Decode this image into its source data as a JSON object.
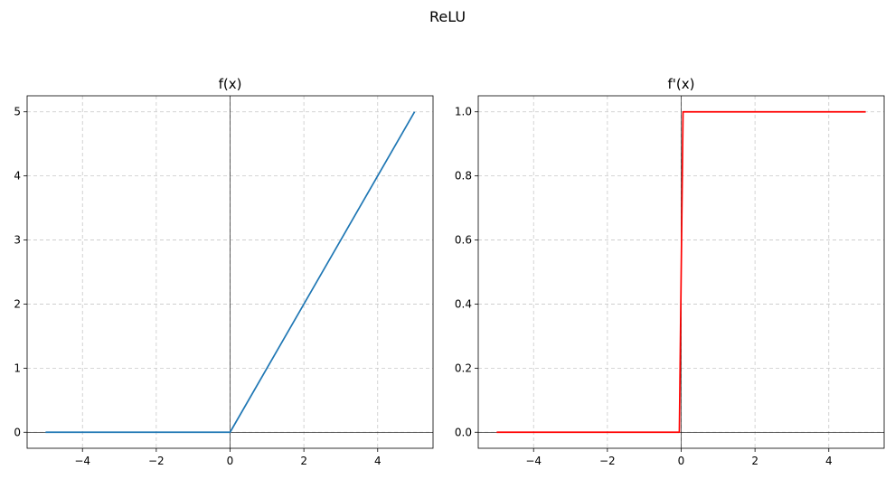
{
  "figure_title": "ReLU",
  "chart_data": [
    {
      "type": "line",
      "title": "f(x)",
      "xlabel": "",
      "ylabel": "",
      "xlim": [
        -5.5,
        5.5
      ],
      "ylim": [
        -0.25,
        5.25
      ],
      "xticks": [
        -4,
        -2,
        0,
        2,
        4
      ],
      "xtick_labels": [
        "−4",
        "−2",
        "0",
        "2",
        "4"
      ],
      "yticks": [
        0,
        1,
        2,
        3,
        4,
        5
      ],
      "ytick_labels": [
        "0",
        "1",
        "2",
        "3",
        "4",
        "5"
      ],
      "grid": true,
      "axis_lines": {
        "x0": true,
        "y0": true
      },
      "series": [
        {
          "color": "#1f77b4",
          "x": [
            -5,
            0,
            5
          ],
          "y": [
            0,
            0,
            5
          ]
        }
      ]
    },
    {
      "type": "line",
      "title": "f'(x)",
      "xlabel": "",
      "ylabel": "",
      "xlim": [
        -5.5,
        5.5
      ],
      "ylim": [
        -0.05,
        1.05
      ],
      "xticks": [
        -4,
        -2,
        0,
        2,
        4
      ],
      "xtick_labels": [
        "−4",
        "−2",
        "0",
        "2",
        "4"
      ],
      "yticks": [
        0.0,
        0.2,
        0.4,
        0.6,
        0.8,
        1.0
      ],
      "ytick_labels": [
        "0.0",
        "0.2",
        "0.4",
        "0.6",
        "0.8",
        "1.0"
      ],
      "grid": true,
      "axis_lines": {
        "x0": true,
        "y0": true
      },
      "series": [
        {
          "color": "#ff0000",
          "x": [
            -5,
            -0.05,
            0.05,
            5
          ],
          "y": [
            0,
            0,
            1,
            1
          ]
        }
      ]
    }
  ]
}
